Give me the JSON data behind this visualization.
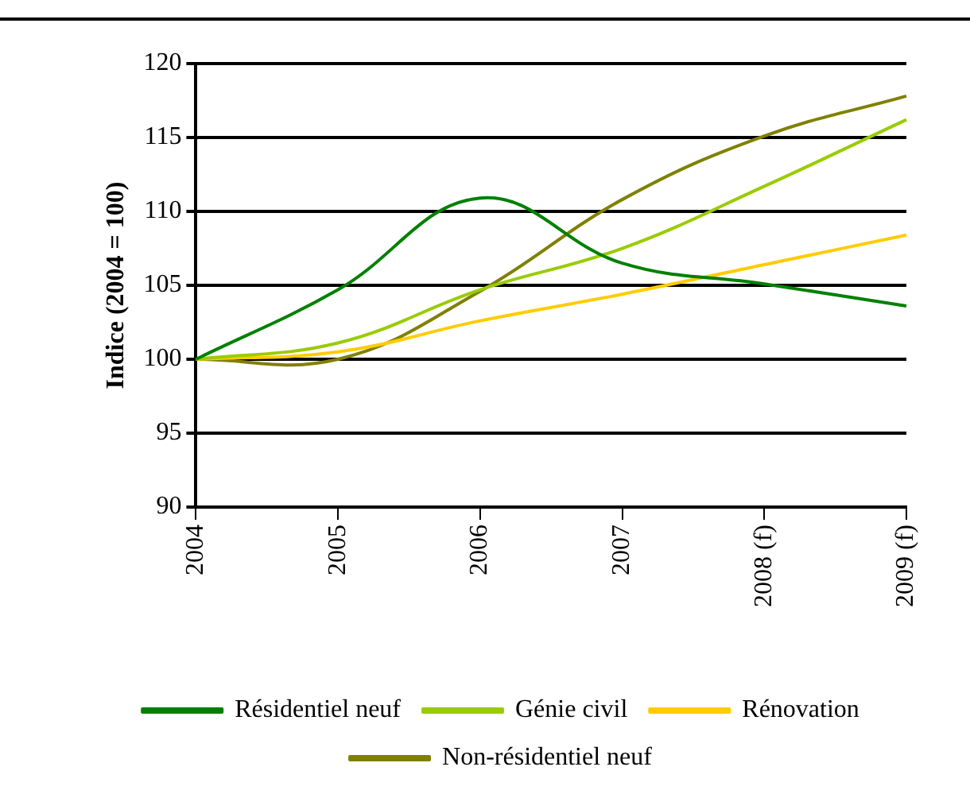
{
  "chart_data": {
    "type": "line",
    "ylabel": "Indice (2004 = 100)",
    "categories": [
      "2004",
      "2005",
      "2006",
      "2007",
      "2008 (f)",
      "2009 (f)"
    ],
    "series": [
      {
        "name": "Résidentiel neuf",
        "color": "#008000",
        "values": [
          100,
          104.7,
          110.9,
          106.5,
          105.1,
          103.6
        ]
      },
      {
        "name": "Génie civil",
        "color": "#99cc00",
        "values": [
          100,
          101.1,
          104.7,
          107.5,
          111.7,
          116.2
        ]
      },
      {
        "name": "Rénovation",
        "color": "#ffcc00",
        "values": [
          100,
          100.5,
          102.6,
          104.4,
          106.4,
          108.4
        ]
      },
      {
        "name": "Non-résidentiel neuf",
        "color": "#808000",
        "values": [
          100,
          100,
          104.6,
          110.8,
          115.1,
          117.8
        ]
      }
    ],
    "ylim": [
      90,
      120
    ],
    "yticks": [
      90,
      95,
      100,
      105,
      110,
      115,
      120
    ],
    "grid": "y",
    "legend": "bottom",
    "marker": "none",
    "line_style": "solid"
  }
}
